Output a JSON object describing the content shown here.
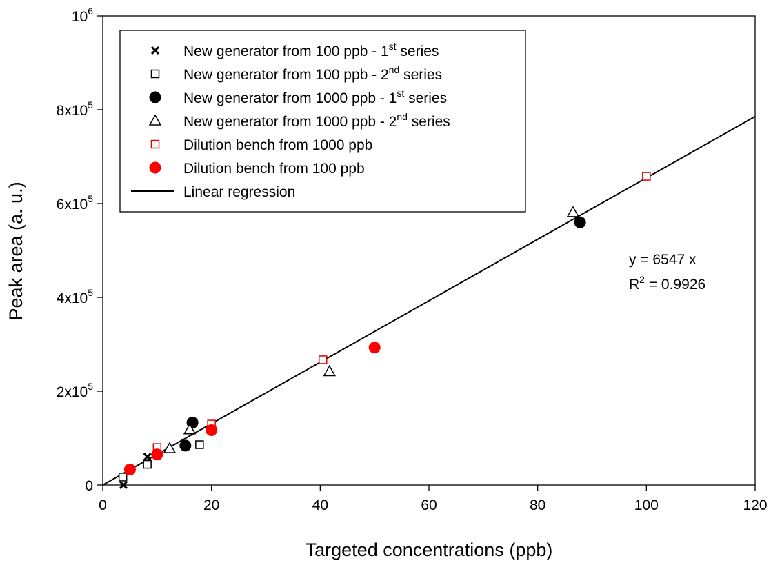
{
  "chart_data": {
    "type": "scatter",
    "title": "",
    "xlabel": "Targeted concentrations (ppb)",
    "ylabel": "Peak area (a. u.)",
    "xlim": [
      0,
      120
    ],
    "ylim": [
      0,
      1000000
    ],
    "x_ticks": [
      {
        "value": 0,
        "label": "0"
      },
      {
        "value": 20,
        "label": "20"
      },
      {
        "value": 40,
        "label": "40"
      },
      {
        "value": 60,
        "label": "60"
      },
      {
        "value": 80,
        "label": "80"
      },
      {
        "value": 100,
        "label": "100"
      },
      {
        "value": 120,
        "label": "120"
      }
    ],
    "y_ticks": [
      {
        "value": 0,
        "base": "0",
        "exp": ""
      },
      {
        "value": 200000,
        "base": "2x10",
        "exp": "5"
      },
      {
        "value": 400000,
        "base": "4x10",
        "exp": "5"
      },
      {
        "value": 600000,
        "base": "6x10",
        "exp": "5"
      },
      {
        "value": 800000,
        "base": "8x10",
        "exp": "5"
      },
      {
        "value": 1000000,
        "base": "10",
        "exp": "6"
      }
    ],
    "grid": false,
    "legend_position": "top-left",
    "series": [
      {
        "legend": {
          "text": "New generator from 100 ppb - 1",
          "sup": "st",
          "suffix": " series"
        },
        "marker": "x",
        "color": "#000000",
        "points": [
          [
            3.8,
            0
          ],
          [
            8.2,
            60000
          ]
        ]
      },
      {
        "legend": {
          "text": "New generator from 100 ppb - 2",
          "sup": "nd",
          "suffix": " series"
        },
        "marker": "square-open",
        "color": "#000000",
        "points": [
          [
            3.7,
            17000
          ],
          [
            8.2,
            44000
          ],
          [
            17.8,
            86000
          ]
        ]
      },
      {
        "legend": {
          "text": "New generator from 1000 ppb - 1",
          "sup": "st",
          "suffix": " series"
        },
        "marker": "circle-filled",
        "color": "#000000",
        "points": [
          [
            15.2,
            84000
          ],
          [
            16.5,
            133000
          ],
          [
            87.8,
            560000
          ]
        ]
      },
      {
        "legend": {
          "text": "New generator from 1000 ppb - 2",
          "sup": "nd",
          "suffix": " series"
        },
        "marker": "triangle-open",
        "color": "#000000",
        "points": [
          [
            12.3,
            78000
          ],
          [
            16.0,
            118000
          ],
          [
            41.7,
            242000
          ],
          [
            86.5,
            581000
          ]
        ]
      },
      {
        "legend": {
          "text": "Dilution bench from 1000 ppb",
          "sup": "",
          "suffix": ""
        },
        "marker": "square-open",
        "color": "#e00000",
        "points": [
          [
            10.0,
            80000
          ],
          [
            20.0,
            130000
          ],
          [
            40.5,
            267000
          ],
          [
            100.0,
            658000
          ]
        ]
      },
      {
        "legend": {
          "text": "Dilution bench from 100 ppb",
          "sup": "",
          "suffix": ""
        },
        "marker": "circle-filled",
        "color": "#ff0000",
        "points": [
          [
            5.0,
            33000
          ],
          [
            10.0,
            65000
          ],
          [
            20.0,
            117000
          ],
          [
            50.0,
            293000
          ]
        ]
      }
    ],
    "regression": {
      "legend": {
        "text": "Linear regression",
        "sup": "",
        "suffix": ""
      },
      "slope": 6547,
      "color": "#000000"
    },
    "annotation": {
      "equation": "y = 6547 x",
      "r2_prefix": "R",
      "r2_sup": "2",
      "r2_value": " = 0.9926"
    }
  }
}
